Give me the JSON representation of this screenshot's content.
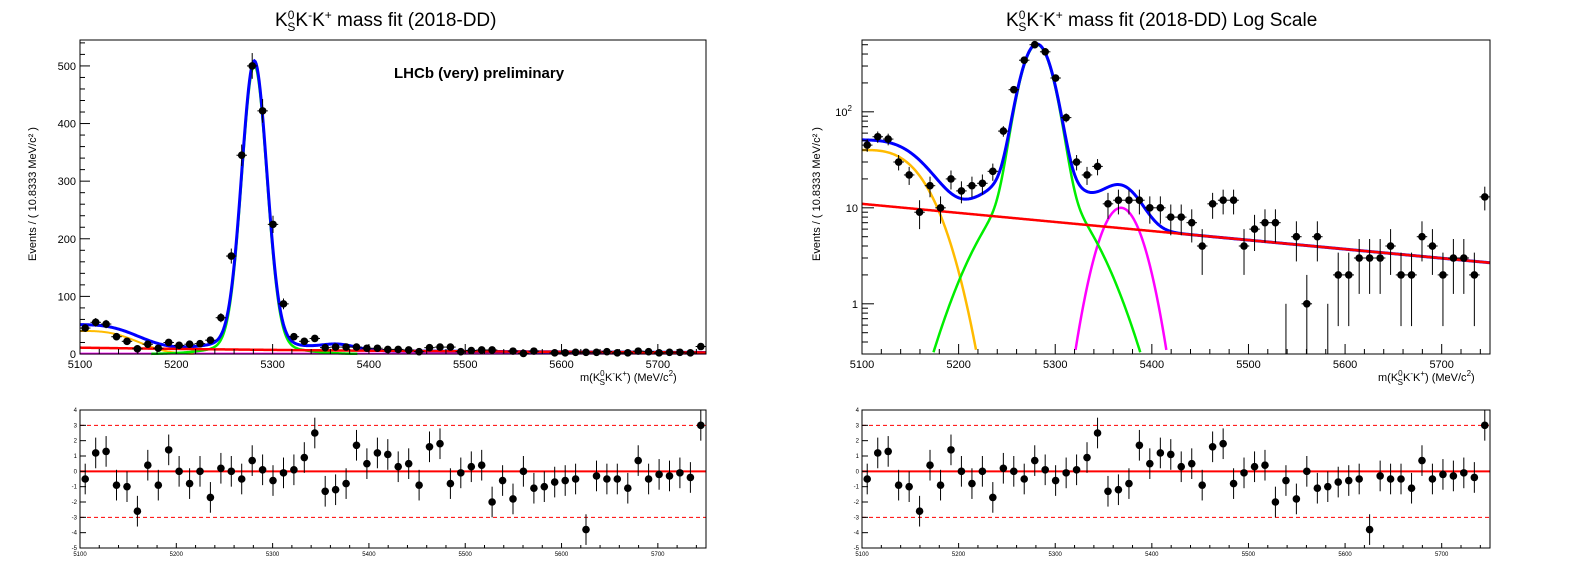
{
  "chart_data": [
    {
      "type": "scatter",
      "title": "K_S^0K^-K^+ mass fit (2018-DD)",
      "title_parts": {
        "base": "K",
        "sup0": "0",
        "sub_s": "S",
        "rest1": "K",
        "sup_minus": "-",
        "rest2": "K",
        "sup_plus": "+",
        "tail": " mass fit (2018-DD)"
      },
      "ylabel": "Events / ( 10.8333 MeV/c² )",
      "xlabel": "m(K_S^0K^-K^+) (MeV/c²)",
      "xlabel_parts": {
        "pre": "m(K",
        "sup0": "0",
        "sub_s": "S",
        "k1": "K",
        "minus": "-",
        "k2": "K",
        "plus": "+",
        "post": ") (MeV/c",
        "sq": "2",
        "close": ")"
      },
      "annotation": "LHCb (very) preliminary",
      "xlim": [
        5100,
        5750
      ],
      "ylim": [
        0,
        545
      ],
      "yscale": "linear",
      "x_ticks": [
        "5100",
        "5200",
        "5300",
        "5400",
        "5500",
        "5600",
        "5700"
      ],
      "y_ticks": [
        "0",
        "100",
        "200",
        "300",
        "400",
        "500"
      ]
    },
    {
      "type": "scatter",
      "title": "K_S^0K^-K^+ mass fit (2018-DD) Log Scale",
      "tail": " mass fit (2018-DD) Log Scale",
      "ylabel": "Events / ( 10.8333 MeV/c² )",
      "xlabel": "m(K_S^0K^-K^+) (MeV/c²)",
      "xlim": [
        5100,
        5750
      ],
      "ylim": [
        0.3,
        560
      ],
      "yscale": "log",
      "x_ticks": [
        "5100",
        "5200",
        "5300",
        "5400",
        "5500",
        "5600",
        "5700"
      ],
      "y_ticks": [
        {
          "v": 1,
          "label": "1"
        },
        {
          "v": 10,
          "label": "10"
        },
        {
          "v": 100,
          "label": "10",
          "sup": "2"
        }
      ]
    },
    {
      "type": "scatter",
      "name": "pull",
      "ylim": [
        -5,
        4
      ],
      "xlim": [
        5100,
        5750
      ],
      "y_ticks": [
        "-5",
        "-4",
        "-3",
        "-2",
        "-1",
        "0",
        "1",
        "2",
        "3",
        "4"
      ],
      "x_ticks": [
        "5100",
        "5200",
        "5300",
        "5400",
        "5500",
        "5600",
        "5700"
      ],
      "ref_lines": [
        0,
        3,
        -3
      ]
    }
  ],
  "data_points": {
    "x": [
      5105.4,
      5116.3,
      5127.1,
      5137.9,
      5148.8,
      5159.6,
      5170.4,
      5181.3,
      5192.1,
      5202.9,
      5213.8,
      5224.6,
      5235.4,
      5246.3,
      5257.1,
      5267.9,
      5278.8,
      5289.6,
      5300.4,
      5311.3,
      5322.1,
      5332.9,
      5343.8,
      5354.6,
      5365.4,
      5376.3,
      5387.1,
      5397.9,
      5408.8,
      5419.6,
      5430.4,
      5441.3,
      5452.1,
      5462.9,
      5473.8,
      5484.6,
      5495.4,
      5506.3,
      5517.1,
      5527.9,
      5538.8,
      5549.6,
      5560.4,
      5571.3,
      5582.1,
      5592.9,
      5603.8,
      5614.6,
      5625.4,
      5636.3,
      5647.1,
      5657.9,
      5668.8,
      5679.6,
      5690.4,
      5701.3,
      5712.1,
      5722.9,
      5733.8,
      5744.6
    ],
    "y": [
      45,
      55,
      52,
      30,
      22,
      9,
      17,
      10,
      20,
      15,
      17,
      18,
      24,
      63,
      170,
      345,
      500,
      422,
      225,
      87,
      30,
      22,
      27,
      11,
      12,
      12,
      12,
      10,
      10,
      8,
      8,
      7,
      4,
      11,
      12,
      12,
      4,
      6,
      7,
      7,
      0,
      5,
      1,
      5,
      0,
      2,
      2,
      3,
      3,
      3,
      4,
      2,
      2,
      5,
      4,
      2,
      3,
      3,
      2,
      13
    ],
    "pull": [
      -0.5,
      1.2,
      1.3,
      -0.9,
      -1.0,
      -2.6,
      0.4,
      -0.9,
      1.4,
      0.0,
      -0.8,
      0.0,
      -1.7,
      0.2,
      0.0,
      -0.5,
      0.7,
      0.1,
      -0.6,
      -0.1,
      0.1,
      0.9,
      2.5,
      -1.3,
      -1.2,
      -0.8,
      1.7,
      0.5,
      1.2,
      1.1,
      0.3,
      0.5,
      -0.9,
      1.6,
      1.8,
      -0.8,
      -0.1,
      0.3,
      0.4,
      -2.0,
      -0.6,
      -1.8,
      0.0,
      -1.1,
      -1.0,
      -0.7,
      -0.6,
      -0.5,
      -3.8,
      -0.3,
      -0.5,
      -0.5,
      -1.1,
      0.7,
      -0.5,
      -0.2,
      -0.3,
      -0.1,
      -0.4,
      3.0
    ]
  },
  "fit_components": {
    "total": {
      "color": "#0000ff",
      "role": "total"
    },
    "signal": {
      "color": "#00ee00",
      "role": "signal"
    },
    "combinatorial": {
      "color": "#ff0000",
      "role": "combinatorial"
    },
    "partial_reco": {
      "color": "#ffbb00",
      "role": "partial_reco"
    },
    "bump": {
      "color": "#ff00ff",
      "role": "bump"
    }
  }
}
